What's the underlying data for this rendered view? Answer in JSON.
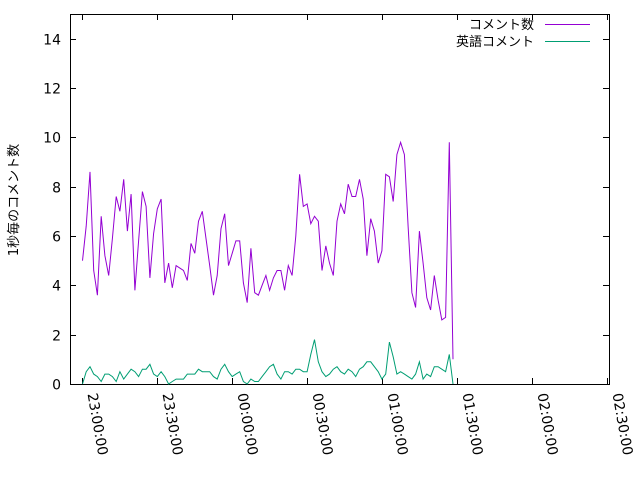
{
  "chart_data": {
    "type": "line",
    "title": "",
    "xlabel": "",
    "ylabel": "1秒毎のコメント数",
    "xlim": [
      "23:00:00 -1h? no",
      "02:30:00"
    ],
    "x_range_seconds_from_label": [
      "22:55:00",
      "02:31:00"
    ],
    "ylim": [
      0,
      15
    ],
    "y_ticks": [
      "0",
      "2",
      "4",
      "6",
      "8",
      "10",
      "12",
      "14"
    ],
    "x_ticks": [
      "23:00:00",
      "23:30:00",
      "00:00:00",
      "00:30:00",
      "01:00:00",
      "01:30:00",
      "02:00:00",
      "02:30:00"
    ],
    "grid": false,
    "legend_position": "top-right",
    "series": [
      {
        "name": "コメント数",
        "color": "#9400d3",
        "points": [
          [
            "23:00:00",
            5.0
          ],
          [
            "23:01:30",
            6.4
          ],
          [
            "23:03:00",
            8.6
          ],
          [
            "23:04:30",
            4.6
          ],
          [
            "23:06:00",
            3.6
          ],
          [
            "23:07:30",
            6.8
          ],
          [
            "23:09:00",
            5.2
          ],
          [
            "23:10:30",
            4.4
          ],
          [
            "23:12:00",
            5.9
          ],
          [
            "23:13:30",
            7.6
          ],
          [
            "23:15:00",
            7.0
          ],
          [
            "23:16:30",
            8.3
          ],
          [
            "23:18:00",
            6.2
          ],
          [
            "23:19:30",
            7.7
          ],
          [
            "23:21:00",
            3.8
          ],
          [
            "23:22:30",
            5.8
          ],
          [
            "23:24:00",
            7.8
          ],
          [
            "23:25:30",
            7.2
          ],
          [
            "23:27:00",
            4.3
          ],
          [
            "23:28:30",
            6.1
          ],
          [
            "23:30:00",
            7.1
          ],
          [
            "23:31:30",
            7.5
          ],
          [
            "23:33:00",
            4.1
          ],
          [
            "23:34:30",
            4.9
          ],
          [
            "23:36:00",
            3.9
          ],
          [
            "23:37:30",
            4.8
          ],
          [
            "23:39:00",
            4.7
          ],
          [
            "23:40:30",
            4.6
          ],
          [
            "23:42:00",
            4.2
          ],
          [
            "23:43:30",
            5.7
          ],
          [
            "23:45:00",
            5.3
          ],
          [
            "23:46:30",
            6.6
          ],
          [
            "23:48:00",
            7.0
          ],
          [
            "23:49:30",
            5.9
          ],
          [
            "23:51:00",
            4.8
          ],
          [
            "23:52:30",
            3.6
          ],
          [
            "23:54:00",
            4.4
          ],
          [
            "23:55:30",
            6.3
          ],
          [
            "23:57:00",
            6.9
          ],
          [
            "23:58:30",
            4.8
          ],
          [
            "00:00:00",
            5.3
          ],
          [
            "00:01:30",
            5.8
          ],
          [
            "00:03:00",
            5.8
          ],
          [
            "00:04:30",
            4.1
          ],
          [
            "00:06:00",
            3.3
          ],
          [
            "00:07:30",
            5.5
          ],
          [
            "00:09:00",
            3.7
          ],
          [
            "00:10:30",
            3.6
          ],
          [
            "00:12:00",
            4.0
          ],
          [
            "00:13:30",
            4.4
          ],
          [
            "00:15:00",
            3.8
          ],
          [
            "00:16:30",
            4.3
          ],
          [
            "00:18:00",
            4.6
          ],
          [
            "00:19:30",
            4.6
          ],
          [
            "00:21:00",
            3.8
          ],
          [
            "00:22:30",
            4.8
          ],
          [
            "00:24:00",
            4.4
          ],
          [
            "00:25:30",
            6.0
          ],
          [
            "00:27:00",
            8.5
          ],
          [
            "00:28:30",
            7.2
          ],
          [
            "00:30:00",
            7.3
          ],
          [
            "00:31:30",
            6.5
          ],
          [
            "00:33:00",
            6.8
          ],
          [
            "00:34:30",
            6.6
          ],
          [
            "00:36:00",
            4.6
          ],
          [
            "00:37:30",
            5.6
          ],
          [
            "00:39:00",
            4.9
          ],
          [
            "00:40:30",
            4.4
          ],
          [
            "00:42:00",
            6.6
          ],
          [
            "00:43:30",
            7.3
          ],
          [
            "00:45:00",
            6.9
          ],
          [
            "00:46:30",
            8.1
          ],
          [
            "00:48:00",
            7.6
          ],
          [
            "00:49:30",
            7.6
          ],
          [
            "00:51:00",
            8.3
          ],
          [
            "00:52:30",
            7.5
          ],
          [
            "00:54:00",
            5.2
          ],
          [
            "00:55:30",
            6.7
          ],
          [
            "00:57:00",
            6.2
          ],
          [
            "00:58:30",
            4.9
          ],
          [
            "01:00:00",
            5.4
          ],
          [
            "01:01:30",
            8.5
          ],
          [
            "01:03:00",
            8.4
          ],
          [
            "01:04:30",
            7.4
          ],
          [
            "01:06:00",
            9.3
          ],
          [
            "01:07:30",
            9.8
          ],
          [
            "01:09:00",
            9.3
          ],
          [
            "01:10:30",
            6.4
          ],
          [
            "01:12:00",
            3.7
          ],
          [
            "01:13:30",
            3.1
          ],
          [
            "01:15:00",
            6.2
          ],
          [
            "01:16:30",
            4.9
          ],
          [
            "01:18:00",
            3.5
          ],
          [
            "01:19:30",
            3.0
          ],
          [
            "01:21:00",
            4.4
          ],
          [
            "01:22:30",
            3.4
          ],
          [
            "01:24:00",
            2.6
          ],
          [
            "01:25:30",
            2.7
          ],
          [
            "01:27:00",
            9.8
          ],
          [
            "01:28:30",
            1.0
          ]
        ]
      },
      {
        "name": "英語コメント",
        "color": "#009e73",
        "points": [
          [
            "23:00:00",
            0.0
          ],
          [
            "23:01:30",
            0.5
          ],
          [
            "23:03:00",
            0.7
          ],
          [
            "23:04:30",
            0.4
          ],
          [
            "23:06:00",
            0.3
          ],
          [
            "23:07:30",
            0.1
          ],
          [
            "23:09:00",
            0.4
          ],
          [
            "23:10:30",
            0.4
          ],
          [
            "23:12:00",
            0.3
          ],
          [
            "23:13:30",
            0.1
          ],
          [
            "23:15:00",
            0.5
          ],
          [
            "23:16:30",
            0.2
          ],
          [
            "23:18:00",
            0.4
          ],
          [
            "23:19:30",
            0.6
          ],
          [
            "23:21:00",
            0.5
          ],
          [
            "23:22:30",
            0.3
          ],
          [
            "23:24:00",
            0.6
          ],
          [
            "23:25:30",
            0.6
          ],
          [
            "23:27:00",
            0.8
          ],
          [
            "23:28:30",
            0.4
          ],
          [
            "23:30:00",
            0.3
          ],
          [
            "23:31:30",
            0.5
          ],
          [
            "23:33:00",
            0.3
          ],
          [
            "23:34:30",
            0.0
          ],
          [
            "23:36:00",
            0.1
          ],
          [
            "23:37:30",
            0.2
          ],
          [
            "23:39:00",
            0.2
          ],
          [
            "23:40:30",
            0.2
          ],
          [
            "23:42:00",
            0.4
          ],
          [
            "23:43:30",
            0.4
          ],
          [
            "23:45:00",
            0.4
          ],
          [
            "23:46:30",
            0.6
          ],
          [
            "23:48:00",
            0.5
          ],
          [
            "23:49:30",
            0.5
          ],
          [
            "23:51:00",
            0.5
          ],
          [
            "23:52:30",
            0.3
          ],
          [
            "23:54:00",
            0.2
          ],
          [
            "23:55:30",
            0.6
          ],
          [
            "23:57:00",
            0.8
          ],
          [
            "23:58:30",
            0.5
          ],
          [
            "00:00:00",
            0.3
          ],
          [
            "00:01:30",
            0.4
          ],
          [
            "00:03:00",
            0.5
          ],
          [
            "00:04:30",
            0.1
          ],
          [
            "00:06:00",
            0.0
          ],
          [
            "00:07:30",
            0.2
          ],
          [
            "00:09:00",
            0.1
          ],
          [
            "00:10:30",
            0.1
          ],
          [
            "00:12:00",
            0.3
          ],
          [
            "00:13:30",
            0.5
          ],
          [
            "00:15:00",
            0.7
          ],
          [
            "00:16:30",
            0.8
          ],
          [
            "00:18:00",
            0.4
          ],
          [
            "00:19:30",
            0.2
          ],
          [
            "00:21:00",
            0.5
          ],
          [
            "00:22:30",
            0.5
          ],
          [
            "00:24:00",
            0.4
          ],
          [
            "00:25:30",
            0.6
          ],
          [
            "00:27:00",
            0.6
          ],
          [
            "00:28:30",
            0.5
          ],
          [
            "00:30:00",
            0.5
          ],
          [
            "00:31:30",
            1.2
          ],
          [
            "00:33:00",
            1.8
          ],
          [
            "00:34:30",
            0.9
          ],
          [
            "00:36:00",
            0.5
          ],
          [
            "00:37:30",
            0.3
          ],
          [
            "00:39:00",
            0.4
          ],
          [
            "00:40:30",
            0.6
          ],
          [
            "00:42:00",
            0.7
          ],
          [
            "00:43:30",
            0.5
          ],
          [
            "00:45:00",
            0.4
          ],
          [
            "00:46:30",
            0.6
          ],
          [
            "00:48:00",
            0.5
          ],
          [
            "00:49:30",
            0.3
          ],
          [
            "00:51:00",
            0.6
          ],
          [
            "00:52:30",
            0.7
          ],
          [
            "00:54:00",
            0.9
          ],
          [
            "00:55:30",
            0.9
          ],
          [
            "00:57:00",
            0.7
          ],
          [
            "00:58:30",
            0.5
          ],
          [
            "01:00:00",
            0.2
          ],
          [
            "01:01:30",
            0.4
          ],
          [
            "01:03:00",
            1.7
          ],
          [
            "01:04:30",
            1.1
          ],
          [
            "01:06:00",
            0.4
          ],
          [
            "01:07:30",
            0.5
          ],
          [
            "01:09:00",
            0.4
          ],
          [
            "01:10:30",
            0.3
          ],
          [
            "01:12:00",
            0.2
          ],
          [
            "01:13:30",
            0.4
          ],
          [
            "01:15:00",
            0.9
          ],
          [
            "01:16:30",
            0.2
          ],
          [
            "01:18:00",
            0.4
          ],
          [
            "01:19:30",
            0.3
          ],
          [
            "01:21:00",
            0.7
          ],
          [
            "01:22:30",
            0.7
          ],
          [
            "01:24:00",
            0.6
          ],
          [
            "01:25:30",
            0.5
          ],
          [
            "01:27:00",
            1.2
          ],
          [
            "01:28:30",
            0.0
          ]
        ]
      }
    ]
  }
}
